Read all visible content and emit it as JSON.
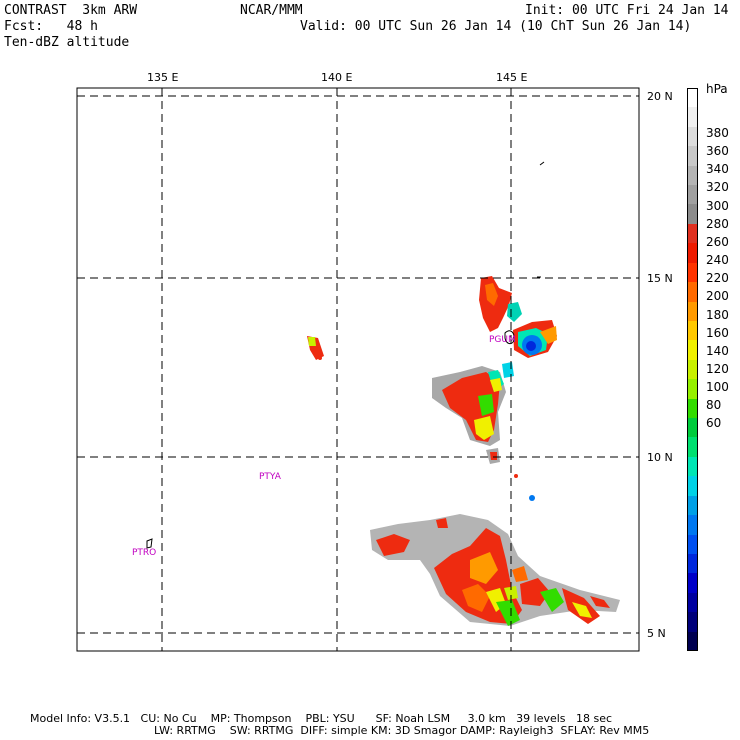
{
  "header": {
    "title_left": "CONTRAST  3km ARW",
    "org": "NCAR/MMM",
    "init": "Init: 00 UTC Fri 24 Jan 14",
    "fcst": "Fcst:   48 h",
    "valid": "Valid: 00 UTC Sun 26 Jan 14 (10 ChT Sun 26 Jan 14)",
    "field": "Ten-dBZ altitude"
  },
  "map": {
    "lon_labels": [
      "135 E",
      "140 E",
      "145 E"
    ],
    "lat_labels": [
      "20 N",
      "15 N",
      "10 N",
      "5 N"
    ],
    "stations": [
      "PGUM",
      "PTYA",
      "PTRO"
    ]
  },
  "colorbar": {
    "unit": "hPa",
    "labels": [
      "380",
      "360",
      "340",
      "320",
      "300",
      "280",
      "260",
      "240",
      "220",
      "200",
      "180",
      "160",
      "140",
      "120",
      "100",
      "80",
      "60"
    ],
    "colors": [
      "#ffffff",
      "#f0f0f0",
      "#dcdcdc",
      "#c8c8c8",
      "#b4b4b4",
      "#a0a0a0",
      "#8c8c8c",
      "#e03020",
      "#ee1a00",
      "#ff3300",
      "#ff6a00",
      "#ff9a00",
      "#ffc800",
      "#f0f000",
      "#c8f000",
      "#96f000",
      "#32dc00",
      "#00cc3c",
      "#00e070",
      "#00e6b4",
      "#00d2e6",
      "#00a0e6",
      "#0078f0",
      "#0050f0",
      "#0028dc",
      "#0000c8",
      "#0000a0",
      "#00007a",
      "#000050"
    ]
  },
  "footer": {
    "line1": "Model Info: V3.5.1   CU: No Cu    MP: Thompson    PBL: YSU      SF: Noah LSM     3.0 km   39 levels   18 sec",
    "line2": "LW: RRTMG    SW: RRTMG  DIFF: simple KM: 3D Smagor DAMP: Rayleigh3  SFLAY: Rev MM5"
  }
}
